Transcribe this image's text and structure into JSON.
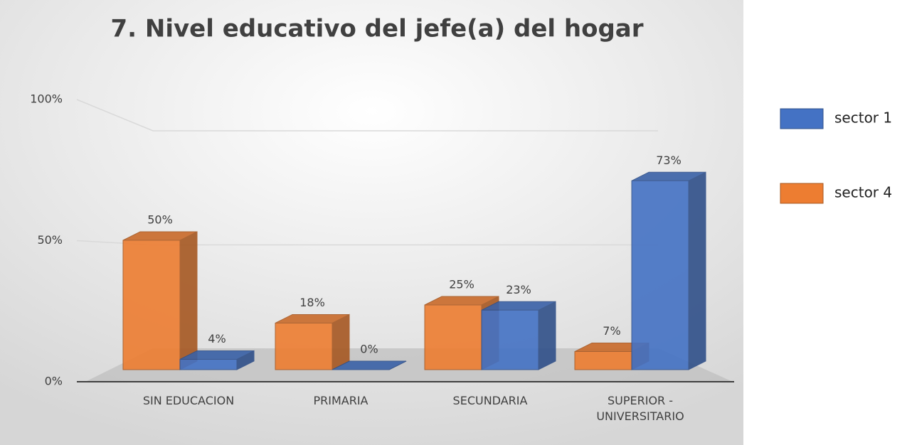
{
  "chart_data": {
    "type": "bar3d",
    "title": "7. Nivel educativo del jefe(a) del hogar",
    "categories": [
      "SIN EDUCACION",
      "PRIMARIA",
      "SECUNDARIA",
      "SUPERIOR - UNIVERSITARIO"
    ],
    "series": [
      {
        "name": "sector 4",
        "color": "#ed7d31",
        "values": [
          50,
          18,
          25,
          7
        ],
        "value_labels": [
          "50%",
          "18%",
          "25%",
          "7%"
        ]
      },
      {
        "name": "sector 1",
        "color": "#4472c4",
        "values": [
          4,
          0,
          23,
          73
        ],
        "value_labels": [
          "4%",
          "0%",
          "23%",
          "73%"
        ]
      }
    ],
    "ylim": [
      0,
      100
    ],
    "yticks": [
      {
        "value": 0,
        "label": "0%"
      },
      {
        "value": 50,
        "label": "50%"
      },
      {
        "value": 100,
        "label": "100%"
      }
    ],
    "grid": true
  }
}
